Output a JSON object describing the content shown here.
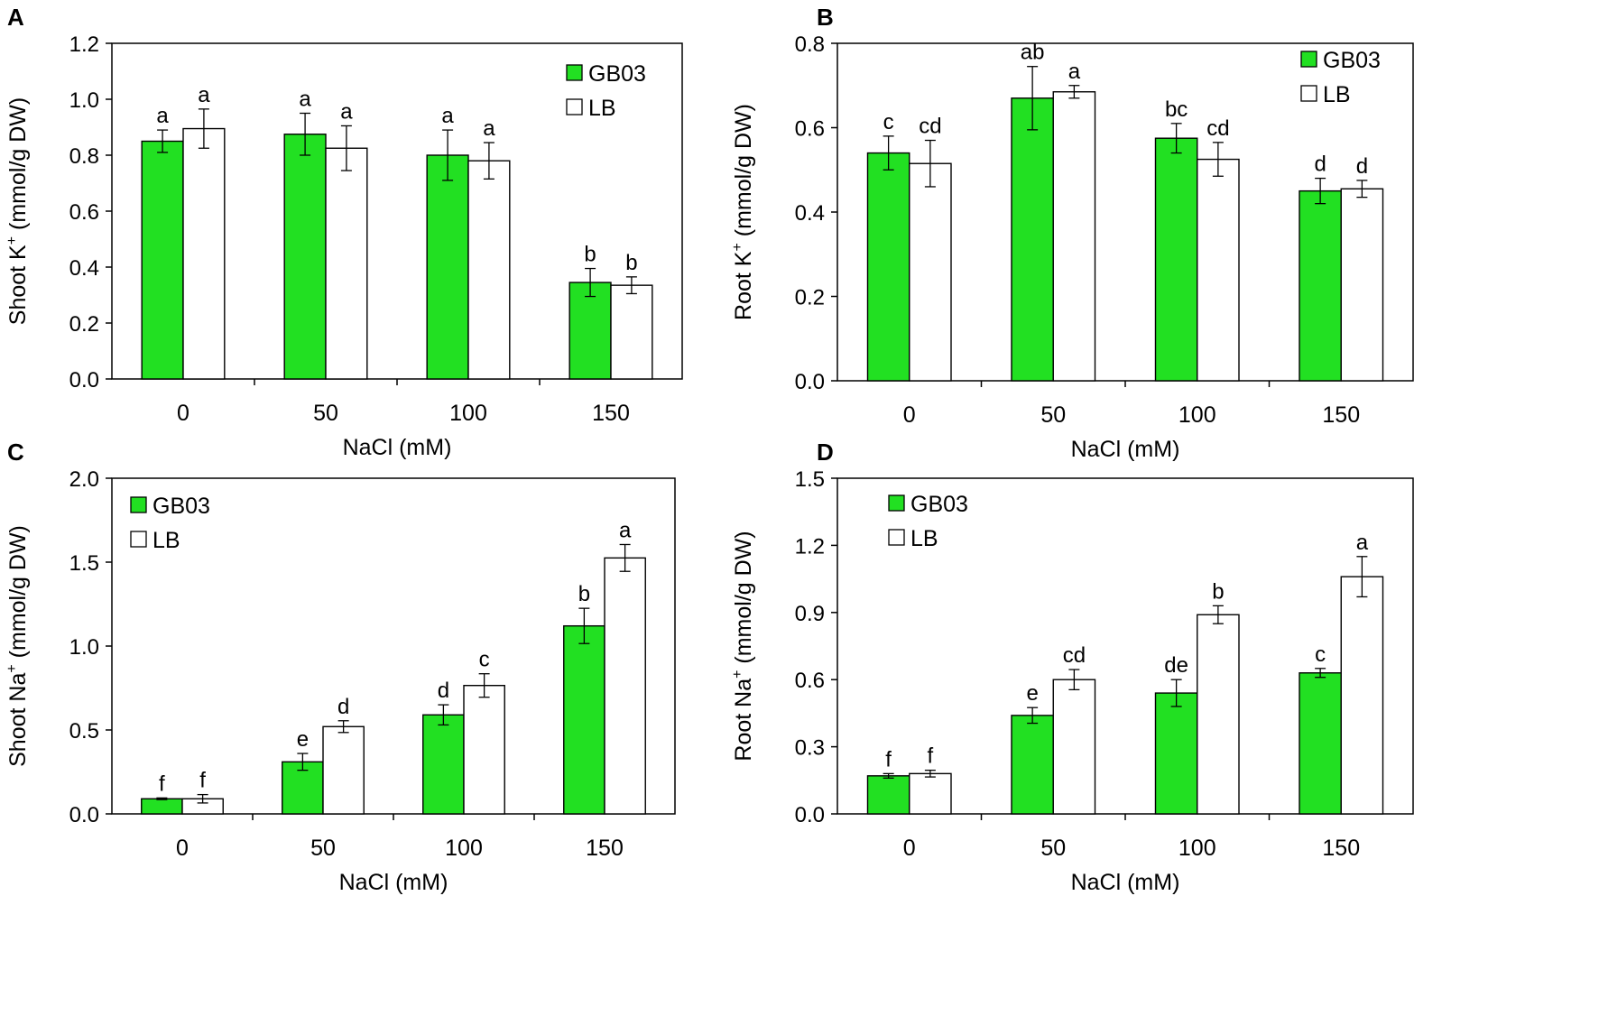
{
  "figure": {
    "legend_entries": [
      "GB03",
      "LB"
    ],
    "colors": {
      "GB03": "#22e022",
      "LB": "#ffffff",
      "stroke": "#000000",
      "frame": "#000000"
    }
  },
  "chart_data": [
    {
      "panel": "A",
      "type": "bar",
      "ylabel": "Shoot K+ (mmol/g DW)",
      "ylabel_base": "Shoot K",
      "ylabel_sup": "+",
      "ylabel_rest": " (mmol/g DW)",
      "xlabel": "NaCl (mM)",
      "categories": [
        "0",
        "50",
        "100",
        "150"
      ],
      "ylim": [
        0,
        1.2
      ],
      "yticks": [
        "0.0",
        "0.2",
        "0.4",
        "0.6",
        "0.8",
        "1.0",
        "1.2"
      ],
      "legend_position": "top-right",
      "grid": false,
      "series": [
        {
          "name": "GB03",
          "values": [
            0.85,
            0.875,
            0.8,
            0.345
          ],
          "errors": [
            0.04,
            0.075,
            0.09,
            0.05
          ],
          "letters": [
            "a",
            "a",
            "a",
            "b"
          ]
        },
        {
          "name": "LB",
          "values": [
            0.895,
            0.825,
            0.78,
            0.335
          ],
          "errors": [
            0.07,
            0.08,
            0.065,
            0.03
          ],
          "letters": [
            "a",
            "a",
            "a",
            "b"
          ]
        }
      ]
    },
    {
      "panel": "B",
      "type": "bar",
      "ylabel": "Root K+ (mmol/g DW)",
      "ylabel_base": "Root K",
      "ylabel_sup": "+",
      "ylabel_rest": " (mmol/g DW)",
      "xlabel": "NaCl (mM)",
      "categories": [
        "0",
        "50",
        "100",
        "150"
      ],
      "ylim": [
        0,
        0.8
      ],
      "yticks": [
        "0.0",
        "0.2",
        "0.4",
        "0.6",
        "0.8"
      ],
      "legend_position": "top-right",
      "grid": false,
      "series": [
        {
          "name": "GB03",
          "values": [
            0.54,
            0.67,
            0.575,
            0.45
          ],
          "errors": [
            0.04,
            0.075,
            0.035,
            0.03
          ],
          "letters": [
            "c",
            "ab",
            "bc",
            "d"
          ]
        },
        {
          "name": "LB",
          "values": [
            0.515,
            0.685,
            0.525,
            0.455
          ],
          "errors": [
            0.055,
            0.015,
            0.04,
            0.02
          ],
          "letters": [
            "cd",
            "a",
            "cd",
            "d"
          ]
        }
      ]
    },
    {
      "panel": "C",
      "type": "bar",
      "ylabel": "Shoot Na+ (mmol/g DW)",
      "ylabel_base": "Shoot Na",
      "ylabel_sup": "+",
      "ylabel_rest": " (mmol/g DW)",
      "xlabel": "NaCl (mM)",
      "categories": [
        "0",
        "50",
        "100",
        "150"
      ],
      "ylim": [
        0,
        2.0
      ],
      "yticks": [
        "0.0",
        "0.5",
        "1.0",
        "1.5",
        "2.0"
      ],
      "legend_position": "top-left",
      "grid": false,
      "series": [
        {
          "name": "GB03",
          "values": [
            0.09,
            0.31,
            0.59,
            1.12
          ],
          "errors": [
            0.005,
            0.05,
            0.06,
            0.105
          ],
          "letters": [
            "f",
            "e",
            "d",
            "b"
          ]
        },
        {
          "name": "LB",
          "values": [
            0.09,
            0.52,
            0.765,
            1.525
          ],
          "errors": [
            0.025,
            0.035,
            0.07,
            0.08
          ],
          "letters": [
            "f",
            "d",
            "c",
            "a"
          ]
        }
      ]
    },
    {
      "panel": "D",
      "type": "bar",
      "ylabel": "Root Na+ (mmol/g DW)",
      "ylabel_base": "Root Na",
      "ylabel_sup": "+",
      "ylabel_rest": " (mmol/g DW)",
      "xlabel": "NaCl (mM)",
      "categories": [
        "0",
        "50",
        "100",
        "150"
      ],
      "ylim": [
        0,
        1.5
      ],
      "yticks": [
        "0.0",
        "0.3",
        "0.6",
        "0.9",
        "1.2",
        "1.5"
      ],
      "legend_position": "top-left",
      "grid": false,
      "series": [
        {
          "name": "GB03",
          "values": [
            0.17,
            0.44,
            0.54,
            0.63
          ],
          "errors": [
            0.01,
            0.035,
            0.06,
            0.02
          ],
          "letters": [
            "f",
            "e",
            "de",
            "c"
          ]
        },
        {
          "name": "LB",
          "values": [
            0.18,
            0.6,
            0.89,
            1.06
          ],
          "errors": [
            0.015,
            0.045,
            0.04,
            0.09
          ],
          "letters": [
            "f",
            "cd",
            "b",
            "a"
          ]
        }
      ]
    }
  ]
}
